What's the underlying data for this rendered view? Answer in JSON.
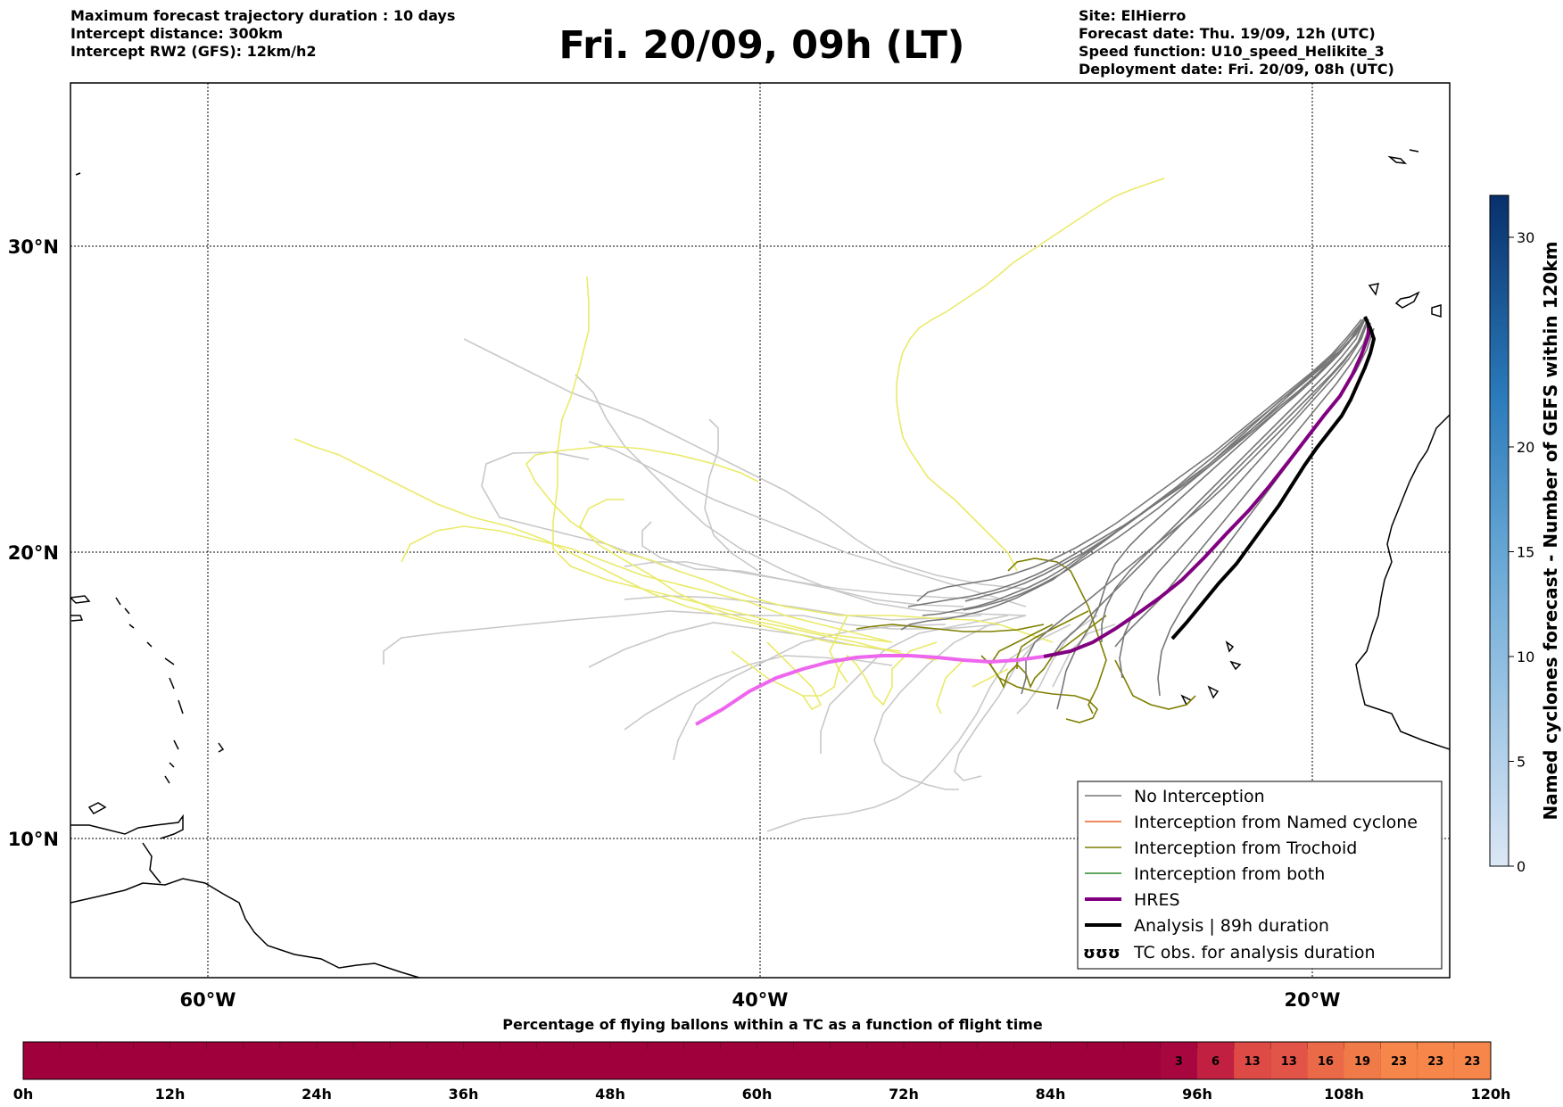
{
  "header": {
    "left_lines": [
      "Maximum forecast trajectory duration : 10 days",
      "Intercept distance: 300km",
      "Intercept RW2 (GFS):  12km/h2"
    ],
    "title": "Fri. 20/09, 09h (LT)",
    "right_lines": [
      "Site: ElHierro",
      "Forecast date: Thu. 19/09, 12h (UTC)",
      "Speed function: U10_speed_Helikite_3",
      "Deployment date: Fri. 20/09, 08h (UTC)"
    ]
  },
  "map": {
    "lon_labels": [
      "60°W",
      "40°W",
      "20°W"
    ],
    "lat_labels": [
      "30°N",
      "20°N",
      "10°N"
    ],
    "legend": [
      {
        "label": "No Interception",
        "color": "#777777",
        "style": "thin"
      },
      {
        "label": "Interception from Named cyclone",
        "color": "#e8622c",
        "style": "thin"
      },
      {
        "label": "Interception from Trochoid",
        "color": "#7f7f00",
        "style": "thin"
      },
      {
        "label": "Interception from both",
        "color": "#2a8a2a",
        "style": "thin"
      },
      {
        "label": "HRES",
        "color": "#800080",
        "style": "thick"
      },
      {
        "label": "Analysis | 89h duration",
        "color": "#000000",
        "style": "thick"
      },
      {
        "label": "TC obs. for analysis duration",
        "color": "#000000",
        "style": "glyph"
      }
    ],
    "legend_glyph": "ʊʊʊ",
    "colors": {
      "no_interception": "#777777",
      "no_interception_light": "#c8c8c8",
      "trochoid": "#7f7f00",
      "yellow_tracks": "#eaea6a",
      "hres": "#800080",
      "hres_light": "#ee66ee",
      "analysis": "#000000"
    }
  },
  "colorbar": {
    "label": "Named cyclones forecast - Number of GEFS within 120km",
    "ticks": [
      "0",
      "5",
      "10",
      "15",
      "20",
      "30"
    ],
    "tick_values": [
      0,
      5,
      10,
      15,
      20,
      30
    ],
    "max": 32,
    "gradient": [
      "#dbe7f5",
      "#6aa9d6",
      "#2b7bbb",
      "#08306b"
    ]
  },
  "timebar": {
    "title": "Percentage of flying ballons within a TC as a function of flight time",
    "x_labels": [
      "0h",
      "12h",
      "24h",
      "36h",
      "48h",
      "60h",
      "72h",
      "84h",
      "96h",
      "108h",
      "120h"
    ],
    "base_color": "#a0003c",
    "cells": [
      {
        "value": "3",
        "color": "#a8063e"
      },
      {
        "value": "6",
        "color": "#c22040"
      },
      {
        "value": "13",
        "color": "#de4a46"
      },
      {
        "value": "13",
        "color": "#e35448"
      },
      {
        "value": "16",
        "color": "#ea6a48"
      },
      {
        "value": "19",
        "color": "#f07a48"
      },
      {
        "value": "23",
        "color": "#f6864a"
      },
      {
        "value": "23",
        "color": "#f6864a"
      },
      {
        "value": "23",
        "color": "#f6864a"
      }
    ]
  }
}
